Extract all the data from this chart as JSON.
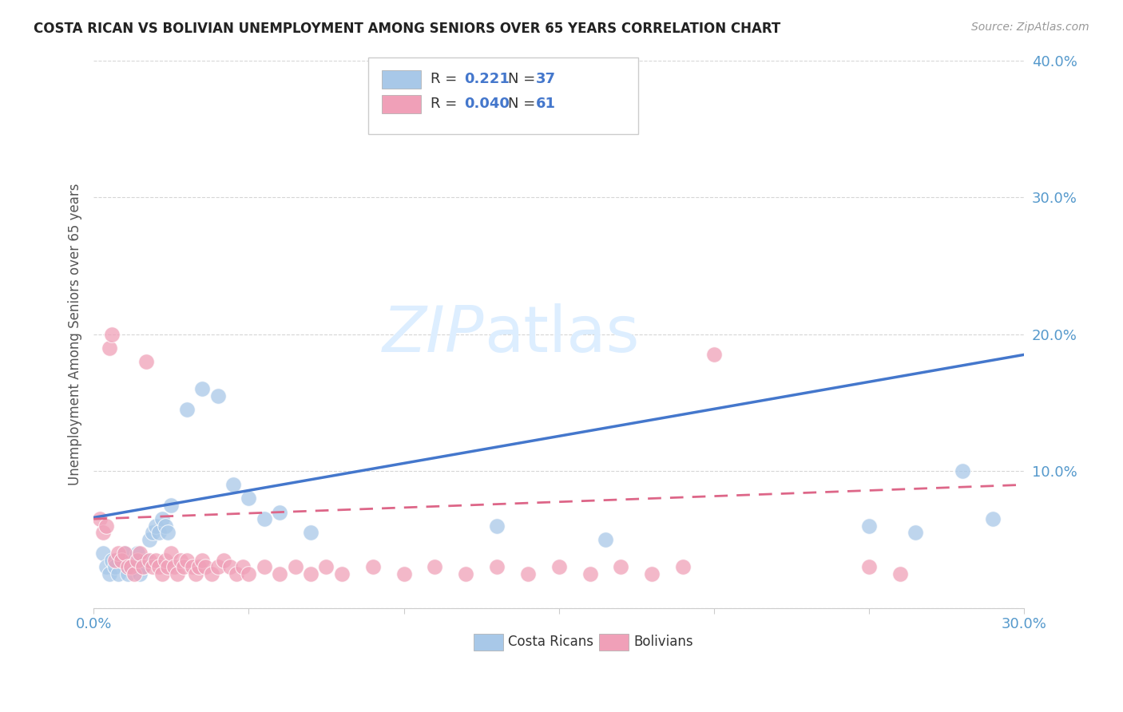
{
  "title": "COSTA RICAN VS BOLIVIAN UNEMPLOYMENT AMONG SENIORS OVER 65 YEARS CORRELATION CHART",
  "source": "Source: ZipAtlas.com",
  "ylabel": "Unemployment Among Seniors over 65 years",
  "xlim": [
    0.0,
    0.3
  ],
  "ylim": [
    0.0,
    0.4
  ],
  "xticks": [
    0.0,
    0.05,
    0.1,
    0.15,
    0.2,
    0.25,
    0.3
  ],
  "yticks": [
    0.0,
    0.1,
    0.2,
    0.3,
    0.4
  ],
  "xtick_labels_show": [
    "0.0%",
    "30.0%"
  ],
  "ytick_labels": [
    "",
    "10.0%",
    "20.0%",
    "30.0%",
    "40.0%"
  ],
  "blue_color": "#a8c8e8",
  "pink_color": "#f0a0b8",
  "blue_line_color": "#4477cc",
  "pink_line_color": "#dd6688",
  "tick_color": "#5599cc",
  "watermark_color": "#ddeeff",
  "costa_ricans_x": [
    0.003,
    0.004,
    0.005,
    0.006,
    0.007,
    0.008,
    0.009,
    0.01,
    0.011,
    0.012,
    0.013,
    0.014,
    0.015,
    0.016,
    0.017,
    0.018,
    0.019,
    0.02,
    0.021,
    0.022,
    0.023,
    0.024,
    0.025,
    0.03,
    0.035,
    0.04,
    0.045,
    0.05,
    0.055,
    0.06,
    0.07,
    0.13,
    0.165,
    0.25,
    0.265,
    0.28,
    0.29
  ],
  "costa_ricans_y": [
    0.04,
    0.03,
    0.025,
    0.035,
    0.03,
    0.025,
    0.035,
    0.04,
    0.025,
    0.03,
    0.035,
    0.04,
    0.025,
    0.03,
    0.035,
    0.05,
    0.055,
    0.06,
    0.055,
    0.065,
    0.06,
    0.055,
    0.075,
    0.145,
    0.16,
    0.155,
    0.09,
    0.08,
    0.065,
    0.07,
    0.055,
    0.06,
    0.05,
    0.06,
    0.055,
    0.1,
    0.065
  ],
  "bolivians_x": [
    0.002,
    0.003,
    0.004,
    0.005,
    0.006,
    0.007,
    0.008,
    0.009,
    0.01,
    0.011,
    0.012,
    0.013,
    0.014,
    0.015,
    0.016,
    0.017,
    0.018,
    0.019,
    0.02,
    0.021,
    0.022,
    0.023,
    0.024,
    0.025,
    0.026,
    0.027,
    0.028,
    0.029,
    0.03,
    0.032,
    0.033,
    0.034,
    0.035,
    0.036,
    0.038,
    0.04,
    0.042,
    0.044,
    0.046,
    0.048,
    0.05,
    0.055,
    0.06,
    0.065,
    0.07,
    0.075,
    0.08,
    0.09,
    0.1,
    0.11,
    0.12,
    0.13,
    0.14,
    0.15,
    0.16,
    0.17,
    0.18,
    0.19,
    0.2,
    0.25,
    0.26
  ],
  "bolivians_y": [
    0.065,
    0.055,
    0.06,
    0.19,
    0.2,
    0.035,
    0.04,
    0.035,
    0.04,
    0.03,
    0.03,
    0.025,
    0.035,
    0.04,
    0.03,
    0.18,
    0.035,
    0.03,
    0.035,
    0.03,
    0.025,
    0.035,
    0.03,
    0.04,
    0.03,
    0.025,
    0.035,
    0.03,
    0.035,
    0.03,
    0.025,
    0.03,
    0.035,
    0.03,
    0.025,
    0.03,
    0.035,
    0.03,
    0.025,
    0.03,
    0.025,
    0.03,
    0.025,
    0.03,
    0.025,
    0.03,
    0.025,
    0.03,
    0.025,
    0.03,
    0.025,
    0.03,
    0.025,
    0.03,
    0.025,
    0.03,
    0.025,
    0.03,
    0.185,
    0.03,
    0.025
  ]
}
